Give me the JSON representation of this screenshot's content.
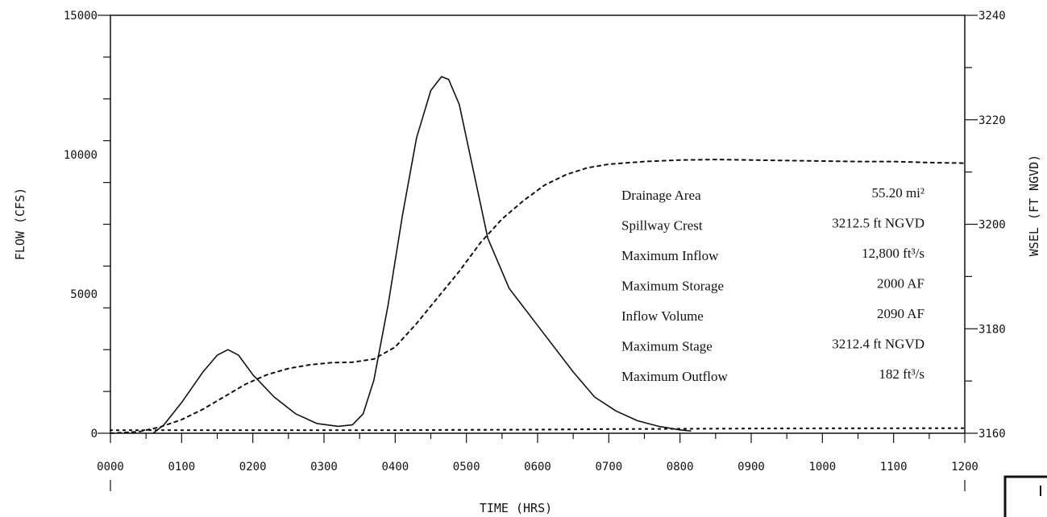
{
  "chart_data": {
    "type": "line",
    "xlabel": "TIME (HRS)",
    "ylabel_left": "FLOW (CFS)",
    "ylabel_right": "WSEL (FT NGVD)",
    "x_ticks": [
      "0000",
      "0100",
      "0200",
      "0300",
      "0400",
      "0500",
      "0600",
      "0700",
      "0800",
      "0900",
      "1000",
      "1100",
      "1200"
    ],
    "xlim": [
      0,
      1200
    ],
    "ylim_left": [
      0,
      15000
    ],
    "ylim_right": [
      3160,
      3240
    ],
    "y_left_ticks": [
      "0",
      "5000",
      "10000",
      "15000"
    ],
    "y_right_ticks": [
      "3160",
      "3180",
      "3200",
      "3220",
      "3240"
    ],
    "series": [
      {
        "style": "solid",
        "axis": "left",
        "x": [
          60,
          75,
          100,
          130,
          150,
          165,
          180,
          200,
          230,
          260,
          290,
          320,
          340,
          355,
          370,
          390,
          410,
          430,
          450,
          465,
          475,
          490,
          510,
          530,
          560,
          590,
          620,
          650,
          680,
          710,
          740,
          770,
          800,
          815
        ],
        "y": [
          0,
          300,
          1100,
          2200,
          2800,
          3000,
          2800,
          2100,
          1300,
          700,
          350,
          250,
          300,
          700,
          1900,
          4600,
          7800,
          10600,
          12300,
          12800,
          12700,
          11800,
          9400,
          7000,
          5200,
          4200,
          3200,
          2200,
          1300,
          800,
          450,
          250,
          120,
          80
        ]
      },
      {
        "style": "dashed",
        "axis": "right",
        "x": [
          0,
          40,
          70,
          100,
          130,
          160,
          190,
          220,
          250,
          280,
          310,
          340,
          370,
          400,
          430,
          460,
          490,
          520,
          550,
          580,
          610,
          640,
          670,
          700,
          750,
          800,
          850,
          900,
          950,
          1000,
          1050,
          1100,
          1150,
          1200
        ],
        "y": [
          3160,
          3160.3,
          3161.2,
          3162.6,
          3164.6,
          3167,
          3169.4,
          3171.2,
          3172.4,
          3173.1,
          3173.5,
          3173.6,
          3174.2,
          3176.5,
          3181,
          3186,
          3191,
          3196.5,
          3201,
          3204.5,
          3207.5,
          3209.5,
          3210.8,
          3211.5,
          3212,
          3212.3,
          3212.4,
          3212.3,
          3212.2,
          3212.1,
          3212,
          3212,
          3211.8,
          3211.7
        ]
      },
      {
        "style": "dotted",
        "axis": "left",
        "x": [
          0,
          100,
          200,
          300,
          400,
          500,
          600,
          700,
          800,
          900,
          1000,
          1100,
          1200
        ],
        "y": [
          110,
          110,
          110,
          110,
          110,
          120,
          130,
          150,
          160,
          170,
          175,
          180,
          182
        ]
      }
    ]
  },
  "info_table": [
    {
      "label": "Drainage Area",
      "value": "55.20 mi²"
    },
    {
      "label": "Spillway Crest",
      "value": "3212.5 ft NGVD"
    },
    {
      "label": "Maximum Inflow",
      "value": "12,800 ft³/s"
    },
    {
      "label": "Maximum Storage",
      "value": "2000 AF"
    },
    {
      "label": "Inflow Volume",
      "value": "2090 AF"
    },
    {
      "label": "Maximum Stage",
      "value": "3212.4 ft NGVD"
    },
    {
      "label": "Maximum Outflow",
      "value": "182 ft³/s"
    }
  ]
}
